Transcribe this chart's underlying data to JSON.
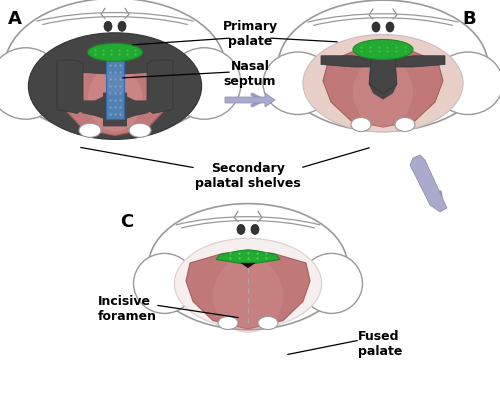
{
  "bg_color": "#ffffff",
  "label_A": "A",
  "label_B": "B",
  "label_C": "C",
  "text_primary_palate": "Primary\npalate",
  "text_nasal_septum": "Nasal\nseptum",
  "text_secondary": "Secondary\npalatal shelves",
  "text_incisive": "Incisive\nforamen",
  "text_fused": "Fused\npalate",
  "color_bg": "#ffffff",
  "color_head_outline": "#999999",
  "color_head_fill": "#ffffff",
  "color_jaw_fill": "#cccccc",
  "color_oral_dark": "#4a4a4a",
  "color_tongue_grad1": "#c08080",
  "color_tongue_grad2": "#e8a0a0",
  "color_tongue_edge": "#a06060",
  "color_dark_tissue": "#4a4a4a",
  "color_green": "#22aa33",
  "color_blue_sept": "#6699cc",
  "color_arrow": "#9999cc",
  "fontsize_label": 13,
  "fontsize_annot": 9
}
